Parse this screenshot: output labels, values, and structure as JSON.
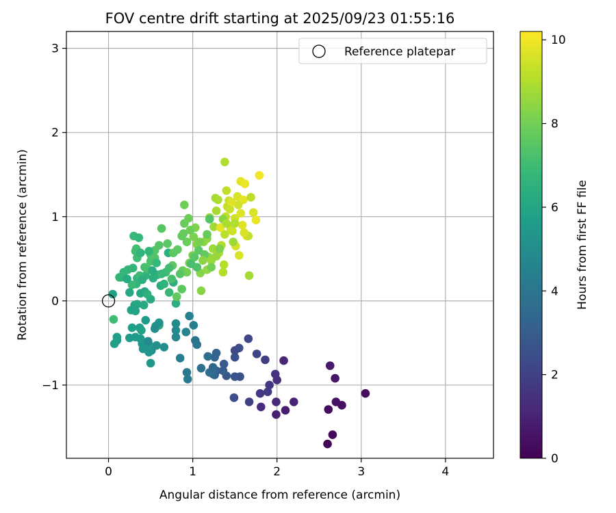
{
  "chart_data": {
    "type": "scatter",
    "title": "FOV centre drift starting at 2025/09/23 01:55:16",
    "xlabel": "Angular distance from reference (arcmin)",
    "ylabel": "Rotation from reference (arcmin)",
    "xlim": [
      -0.5,
      4.57
    ],
    "ylim": [
      -1.87,
      3.2
    ],
    "xticks": [
      0,
      1,
      2,
      3,
      4
    ],
    "yticks": [
      -1,
      0,
      1,
      2,
      3
    ],
    "ytick_labels": [
      "−1",
      "0",
      "1",
      "2",
      "3"
    ],
    "grid": true,
    "legend": {
      "label": "Reference platepar",
      "position": "top-right",
      "marker": "open-circle"
    },
    "reference_point": {
      "x": 0,
      "y": 0
    },
    "colorbar": {
      "label": "Hours from first FF file",
      "colormap": "viridis",
      "range": [
        0,
        10.2
      ],
      "ticks": [
        0,
        2,
        4,
        6,
        8,
        10
      ],
      "colormap_stops": [
        "#440154",
        "#482878",
        "#3e4989",
        "#31688e",
        "#26828e",
        "#1f9e89",
        "#35b779",
        "#6ece58",
        "#b5de2b",
        "#fde725"
      ]
    },
    "points": [
      [
        2.6,
        -1.7,
        0.1
      ],
      [
        2.66,
        -1.59,
        0.2
      ],
      [
        2.61,
        -1.29,
        0.3
      ],
      [
        2.77,
        -1.24,
        0.4
      ],
      [
        2.7,
        -1.2,
        0.5
      ],
      [
        3.05,
        -1.1,
        0.35
      ],
      [
        2.69,
        -0.92,
        0.6
      ],
      [
        2.63,
        -0.77,
        0.7
      ],
      [
        2.1,
        -1.3,
        0.8
      ],
      [
        1.99,
        -1.35,
        0.9
      ],
      [
        2.2,
        -1.2,
        1.0
      ],
      [
        2.08,
        -0.71,
        1.1
      ],
      [
        1.99,
        -1.2,
        1.2
      ],
      [
        1.81,
        -1.26,
        1.3
      ],
      [
        2.0,
        -0.94,
        1.4
      ],
      [
        1.98,
        -0.87,
        1.5
      ],
      [
        1.91,
        -1.0,
        1.6
      ],
      [
        1.8,
        -1.1,
        1.7
      ],
      [
        1.89,
        -1.08,
        1.8
      ],
      [
        1.86,
        -0.7,
        1.9
      ],
      [
        1.67,
        -1.2,
        2.0
      ],
      [
        1.76,
        -0.63,
        2.1
      ],
      [
        1.66,
        -0.45,
        2.2
      ],
      [
        1.5,
        -0.59,
        2.3
      ],
      [
        1.55,
        -0.56,
        2.4
      ],
      [
        1.5,
        -0.67,
        2.5
      ],
      [
        1.56,
        -0.9,
        2.6
      ],
      [
        1.5,
        -0.9,
        2.7
      ],
      [
        1.49,
        -1.15,
        2.4
      ],
      [
        1.4,
        -0.89,
        2.8
      ],
      [
        1.37,
        -0.75,
        2.9
      ],
      [
        1.36,
        -0.83,
        3.0
      ],
      [
        1.28,
        -0.83,
        3.1
      ],
      [
        1.26,
        -0.88,
        3.2
      ],
      [
        1.26,
        -0.67,
        3.3
      ],
      [
        1.24,
        -0.79,
        3.4
      ],
      [
        1.24,
        -0.87,
        3.5
      ],
      [
        1.2,
        -0.85,
        3.6
      ],
      [
        1.18,
        -0.66,
        3.7
      ],
      [
        1.28,
        -0.62,
        3.25
      ],
      [
        1.1,
        -0.8,
        3.8
      ],
      [
        1.03,
        -0.47,
        3.9
      ],
      [
        1.05,
        -0.52,
        4.0
      ],
      [
        0.93,
        -0.85,
        4.1
      ],
      [
        0.94,
        -0.93,
        4.2
      ],
      [
        0.85,
        -0.68,
        4.3
      ],
      [
        1.01,
        -0.29,
        4.4
      ],
      [
        0.96,
        -0.18,
        4.5
      ],
      [
        0.92,
        -0.37,
        4.6
      ],
      [
        0.8,
        -0.43,
        4.7
      ],
      [
        0.8,
        -0.35,
        4.8
      ],
      [
        0.8,
        -0.27,
        4.9
      ],
      [
        0.66,
        -0.55,
        4.95
      ],
      [
        0.51,
        -0.59,
        5.0
      ],
      [
        0.57,
        -0.53,
        5.1
      ],
      [
        0.56,
        -0.3,
        5.2
      ],
      [
        0.48,
        -0.61,
        5.3
      ],
      [
        0.4,
        -0.51,
        5.35
      ],
      [
        0.5,
        -0.74,
        5.4
      ],
      [
        0.48,
        -0.52,
        5.45
      ],
      [
        0.38,
        -0.45,
        5.5
      ],
      [
        0.32,
        -0.43,
        5.55
      ],
      [
        0.44,
        -0.23,
        5.6
      ],
      [
        0.37,
        -0.32,
        5.7
      ],
      [
        0.1,
        -0.47,
        5.6
      ],
      [
        0.1,
        -0.43,
        5.65
      ],
      [
        0.07,
        -0.51,
        5.75
      ],
      [
        0.05,
        0.08,
        5.8
      ],
      [
        0.27,
        -0.11,
        5.85
      ],
      [
        0.31,
        -0.05,
        5.9
      ],
      [
        0.34,
        -0.04,
        6.0
      ],
      [
        0.43,
        0.11,
        6.05
      ],
      [
        0.38,
        0.09,
        6.1
      ],
      [
        0.42,
        -0.05,
        6.15
      ],
      [
        0.5,
        0.02,
        6.2
      ],
      [
        0.6,
        -0.29,
        6.25
      ],
      [
        0.62,
        0.18,
        6.3
      ],
      [
        0.77,
        0.22,
        6.35
      ],
      [
        0.8,
        -0.03,
        6.4
      ],
      [
        0.71,
        0.57,
        6.45
      ],
      [
        0.58,
        0.31,
        6.5
      ],
      [
        0.44,
        0.3,
        6.55
      ],
      [
        0.34,
        0.27,
        6.6
      ],
      [
        0.33,
        0.2,
        6.65
      ],
      [
        0.29,
        0.39,
        6.7
      ],
      [
        0.23,
        0.37,
        6.75
      ],
      [
        0.18,
        0.34,
        6.8
      ],
      [
        0.15,
        0.28,
        6.85
      ],
      [
        0.28,
        0.19,
        6.9
      ],
      [
        0.37,
        0.3,
        6.95
      ],
      [
        0.34,
        0.51,
        7.0
      ],
      [
        0.32,
        0.59,
        7.05
      ],
      [
        0.33,
        0.62,
        7.1
      ],
      [
        0.43,
        0.4,
        7.15
      ],
      [
        0.46,
        0.38,
        7.2
      ],
      [
        0.5,
        0.47,
        7.25
      ],
      [
        0.5,
        0.55,
        7.3
      ],
      [
        0.55,
        0.51,
        7.35
      ],
      [
        0.55,
        0.6,
        7.4
      ],
      [
        0.6,
        0.66,
        7.45
      ],
      [
        0.63,
        0.86,
        7.5
      ],
      [
        0.7,
        0.68,
        7.55
      ],
      [
        0.76,
        0.42,
        7.6
      ],
      [
        0.77,
        0.57,
        7.6
      ],
      [
        0.82,
        0.61,
        7.65
      ],
      [
        0.87,
        0.77,
        7.7
      ],
      [
        0.89,
        0.8,
        7.75
      ],
      [
        0.9,
        0.92,
        7.8
      ],
      [
        0.93,
        0.7,
        7.85
      ],
      [
        0.95,
        0.98,
        7.9
      ],
      [
        0.9,
        1.14,
        7.95
      ],
      [
        0.3,
        0.77,
        6.9
      ],
      [
        0.36,
        0.75,
        6.8
      ],
      [
        0.13,
        0.28,
        6.7
      ],
      [
        0.06,
        -0.22,
        7.0
      ],
      [
        0.81,
        0.05,
        7.7
      ],
      [
        0.87,
        0.14,
        7.6
      ],
      [
        0.88,
        0.36,
        7.8
      ],
      [
        0.93,
        0.34,
        8.0
      ],
      [
        0.96,
        0.45,
        8.05
      ],
      [
        1.0,
        0.54,
        8.1
      ],
      [
        1.01,
        0.76,
        8.15
      ],
      [
        1.03,
        0.87,
        8.2
      ],
      [
        1.05,
        0.67,
        8.25
      ],
      [
        1.09,
        0.33,
        8.3
      ],
      [
        1.1,
        0.12,
        8.35
      ],
      [
        1.13,
        0.7,
        8.4
      ],
      [
        1.17,
        0.74,
        8.45
      ],
      [
        1.17,
        0.37,
        8.5
      ],
      [
        1.19,
        0.52,
        8.55
      ],
      [
        1.2,
        0.99,
        8.6
      ],
      [
        1.22,
        0.48,
        8.65
      ],
      [
        1.24,
        0.62,
        8.7
      ],
      [
        1.25,
        0.88,
        8.75
      ],
      [
        1.27,
        1.22,
        8.8
      ],
      [
        1.28,
        1.07,
        8.85
      ],
      [
        1.3,
        1.2,
        8.9
      ],
      [
        1.31,
        0.57,
        8.95
      ],
      [
        1.34,
        0.66,
        9.0
      ],
      [
        1.36,
        0.34,
        9.05
      ],
      [
        1.37,
        0.43,
        9.1
      ],
      [
        1.38,
        0.79,
        9.15
      ],
      [
        1.39,
        1.0,
        9.2
      ],
      [
        1.4,
        1.31,
        9.25
      ],
      [
        1.41,
        1.12,
        9.3
      ],
      [
        1.38,
        1.65,
        9.0
      ],
      [
        1.43,
        1.19,
        9.35
      ],
      [
        1.45,
        0.86,
        9.4
      ],
      [
        1.47,
        0.83,
        9.45
      ],
      [
        1.5,
        0.98,
        9.5
      ],
      [
        1.51,
        0.65,
        9.55
      ],
      [
        1.53,
        1.24,
        9.6
      ],
      [
        1.55,
        0.54,
        9.65
      ],
      [
        1.57,
        1.04,
        9.7
      ],
      [
        1.59,
        0.9,
        9.75
      ],
      [
        1.57,
        1.42,
        9.8
      ],
      [
        1.6,
        1.2,
        9.85
      ],
      [
        1.62,
        1.39,
        9.9
      ],
      [
        1.64,
        0.77,
        9.95
      ],
      [
        1.67,
        0.3,
        8.8
      ],
      [
        1.69,
        1.23,
        9.2
      ],
      [
        1.72,
        1.05,
        9.6
      ],
      [
        1.75,
        0.96,
        9.9
      ],
      [
        1.79,
        1.49,
        10.0
      ],
      [
        1.66,
        0.77,
        9.3
      ],
      [
        1.5,
        0.92,
        9.0
      ],
      [
        1.48,
        0.7,
        8.7
      ],
      [
        1.36,
        0.97,
        8.4
      ],
      [
        1.32,
        0.62,
        8.2
      ],
      [
        1.22,
        0.4,
        8.0
      ],
      [
        1.17,
        0.79,
        7.8
      ],
      [
        1.14,
        0.55,
        7.7
      ],
      [
        1.07,
        0.6,
        7.6
      ],
      [
        1.02,
        0.52,
        7.5
      ],
      [
        1.2,
        0.97,
        7.4
      ],
      [
        1.05,
        0.4,
        7.3
      ],
      [
        0.98,
        0.44,
        7.2
      ],
      [
        0.72,
        0.39,
        7.1
      ],
      [
        0.68,
        0.34,
        7.0
      ],
      [
        0.63,
        0.32,
        6.9
      ],
      [
        0.57,
        0.45,
        6.8
      ],
      [
        0.48,
        0.59,
        6.7
      ],
      [
        0.38,
        0.57,
        6.6
      ],
      [
        0.46,
        0.08,
        6.5
      ],
      [
        0.4,
        0.25,
        6.4
      ],
      [
        0.52,
        0.36,
        6.3
      ],
      [
        0.22,
        0.26,
        6.2
      ],
      [
        0.25,
        0.1,
        6.1
      ],
      [
        1.44,
        1.09,
        9.4
      ],
      [
        1.54,
        1.14,
        9.5
      ],
      [
        1.61,
        0.81,
        9.6
      ],
      [
        1.46,
        1.17,
        9.7
      ],
      [
        1.33,
        0.87,
        9.8
      ],
      [
        1.4,
        0.92,
        8.9
      ],
      [
        1.28,
        0.53,
        8.6
      ],
      [
        1.12,
        0.48,
        8.4
      ],
      [
        1.08,
        0.7,
        8.1
      ],
      [
        0.97,
        0.84,
        7.9
      ],
      [
        0.85,
        0.32,
        7.5
      ],
      [
        0.75,
        0.26,
        7.2
      ],
      [
        0.72,
        0.1,
        6.9
      ],
      [
        0.66,
        0.2,
        6.6
      ],
      [
        0.53,
        0.27,
        6.4
      ],
      [
        0.32,
        -0.12,
        5.9
      ],
      [
        0.25,
        -0.44,
        5.5
      ],
      [
        0.41,
        -0.57,
        5.3
      ],
      [
        0.55,
        -0.33,
        5.0
      ],
      [
        0.47,
        -0.48,
        4.9
      ],
      [
        0.6,
        -0.26,
        5.2
      ],
      [
        0.39,
        -0.35,
        5.8
      ],
      [
        0.28,
        -0.32,
        5.7
      ]
    ]
  }
}
